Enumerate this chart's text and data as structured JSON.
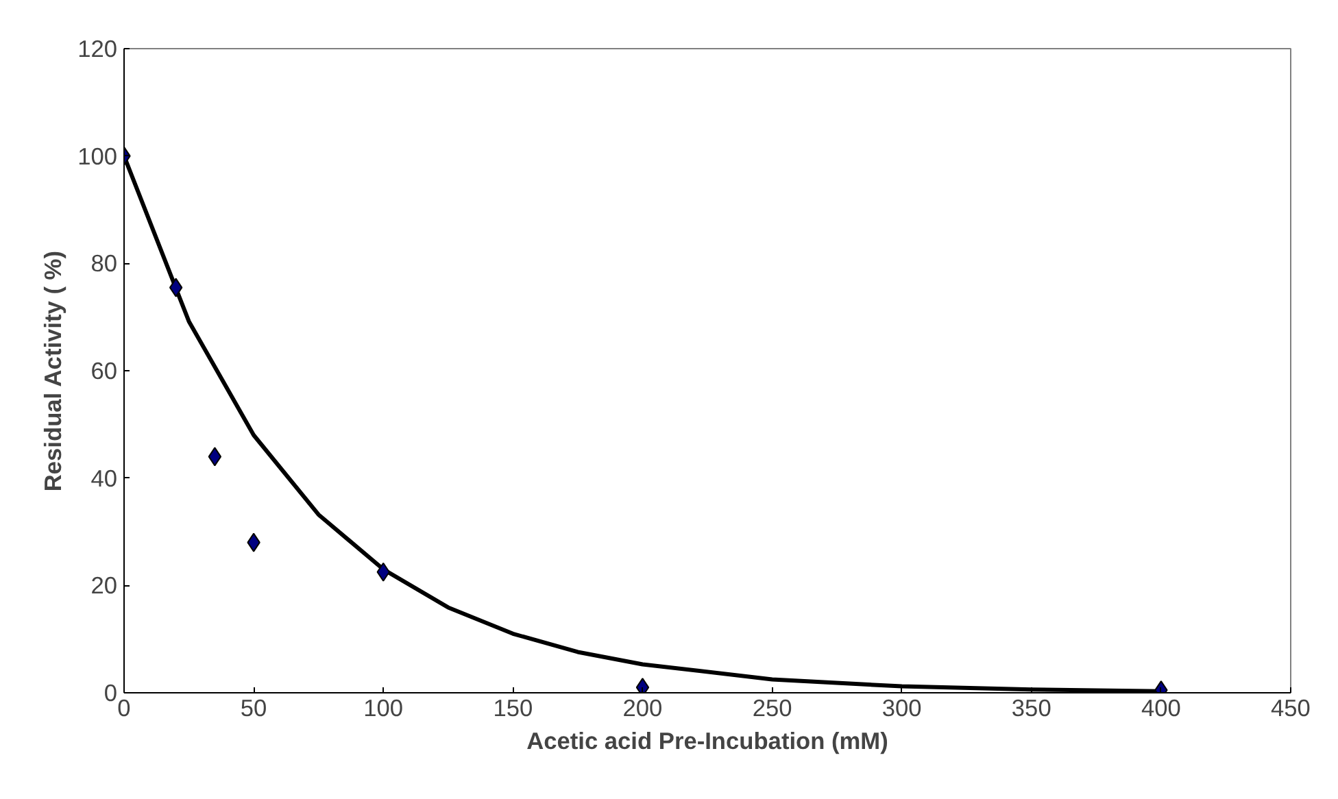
{
  "chart_data": {
    "type": "scatter",
    "xlabel": "Acetic acid Pre-Incubation (mM)",
    "ylabel": "Residual Activity ( %)",
    "xlim": [
      0,
      450
    ],
    "xticks": [
      0,
      50,
      100,
      150,
      200,
      250,
      300,
      350,
      400,
      450
    ],
    "ylim": [
      0,
      120
    ],
    "yticks": [
      0,
      20,
      40,
      60,
      80,
      100,
      120
    ],
    "grid": false,
    "series": [
      {
        "type": "line",
        "color": "#000000",
        "marker": "none",
        "line_style": "solid",
        "x": [
          0,
          25,
          50,
          75,
          100,
          125,
          150,
          175,
          200,
          250,
          300,
          350,
          400
        ],
        "values": [
          100,
          69.2,
          48.0,
          33.2,
          23.0,
          15.9,
          11.0,
          7.6,
          5.3,
          2.5,
          1.2,
          0.6,
          0.3
        ]
      },
      {
        "color": "#000080",
        "marker": "diamond",
        "x": [
          0,
          20,
          35,
          50,
          100,
          200,
          400
        ],
        "values": [
          100,
          75.5,
          44,
          28,
          22.5,
          1,
          0.5
        ]
      }
    ]
  }
}
